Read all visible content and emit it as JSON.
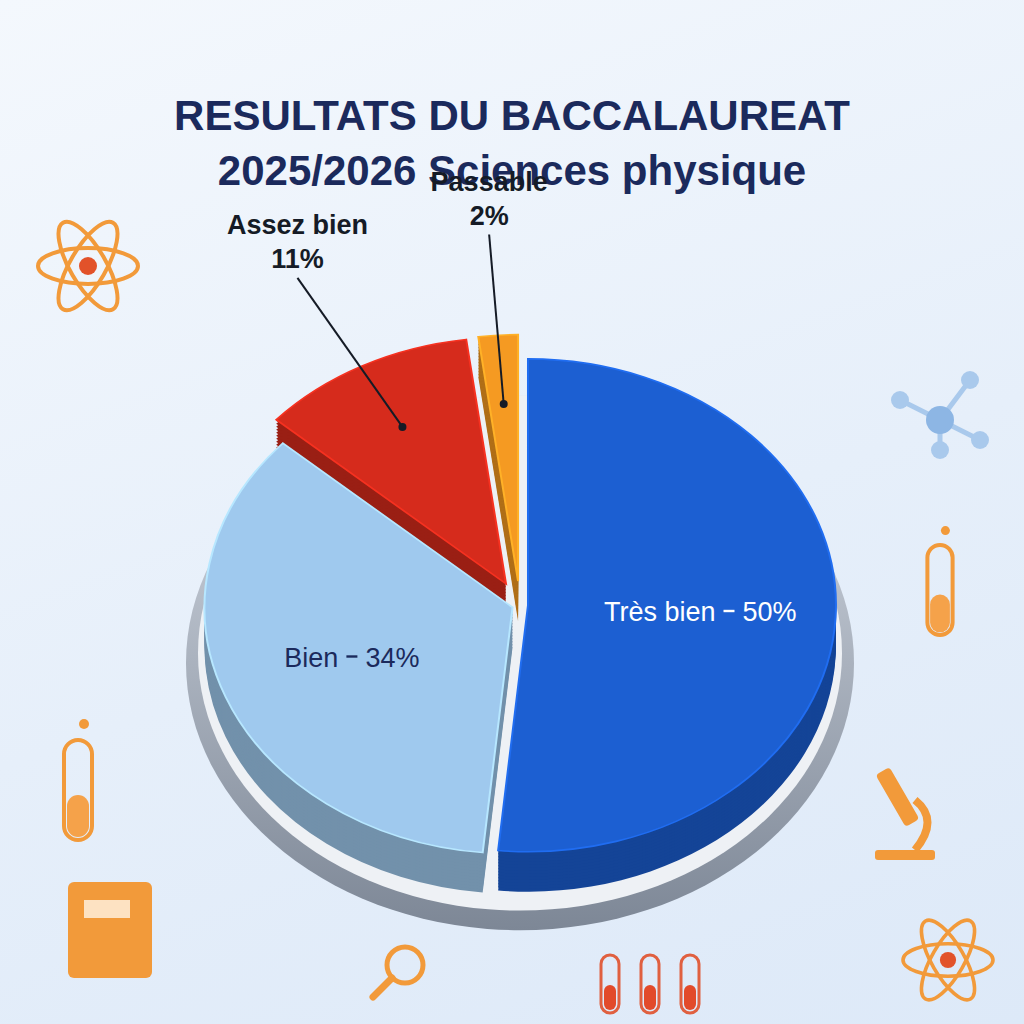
{
  "chart_data": {
    "type": "pie",
    "title": "RESULTATS DU BACCALAUREAT 2025/2026 Sciences physique",
    "categories": [
      "Très bien",
      "Bien",
      "Assez bien",
      "Passable"
    ],
    "values": [
      50,
      34,
      11,
      2
    ],
    "value_labels": [
      "50%",
      "34%",
      "11%",
      "2%"
    ],
    "colors": [
      "#1c5fd2",
      "#9fc9ee",
      "#d62b1c",
      "#f59a22"
    ],
    "data_labels": true
  }
}
